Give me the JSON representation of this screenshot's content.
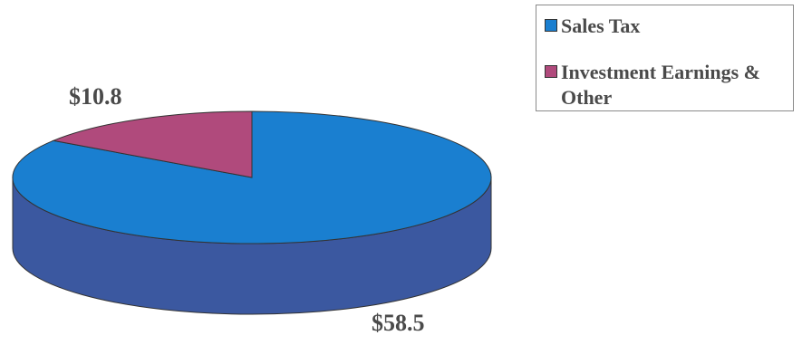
{
  "chart_data": {
    "type": "pie",
    "style": "3d",
    "title": "",
    "slices": [
      {
        "label": "Sales Tax",
        "value": 58.5,
        "data_label": "$58.5",
        "top_color": "#1a7fd0",
        "side_color": "#3b58a0"
      },
      {
        "label": "Investment Earnings & Other",
        "value": 10.8,
        "data_label": "$10.8",
        "top_color": "#b04a7c",
        "side_color": "#7a3058"
      }
    ],
    "legend": {
      "placement": "top-right",
      "entries": [
        "Sales Tax",
        "Investment Earnings & Other"
      ]
    }
  }
}
